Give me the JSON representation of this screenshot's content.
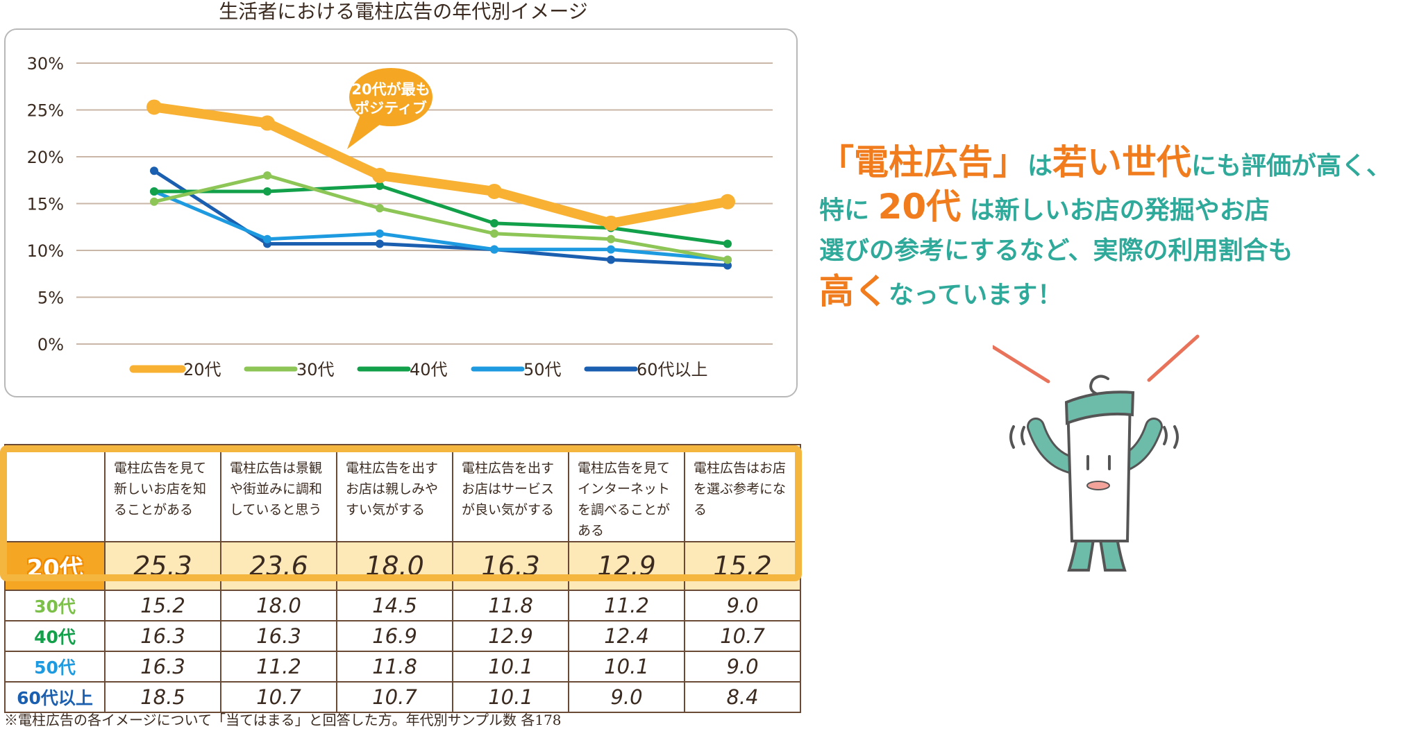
{
  "chart_data": {
    "type": "line",
    "title": "生活者における電柱広告の年代別イメージ",
    "categories": [
      "電柱広告を見て新しいお店を知ることがある",
      "電柱広告は景観や街並みに調和していると思う",
      "電柱広告を出すお店は親しみやすい気がする",
      "電柱広告を出すお店はサービスが良い気がする",
      "電柱広告を見てインターネットを調べることがある",
      "電柱広告はお店を選ぶ参考になる"
    ],
    "y_ticks": [
      "0%",
      "5%",
      "10%",
      "15%",
      "20%",
      "25%",
      "30%"
    ],
    "ylim": [
      0,
      30
    ],
    "grid": true,
    "legend_position": "bottom",
    "series": [
      {
        "name": "20代",
        "color": "#f8b133",
        "values": [
          25.3,
          23.6,
          18.0,
          16.3,
          12.9,
          15.2
        ]
      },
      {
        "name": "30代",
        "color": "#8dc556",
        "values": [
          15.2,
          18.0,
          14.5,
          11.8,
          11.2,
          9.0
        ]
      },
      {
        "name": "40代",
        "color": "#13a04b",
        "values": [
          16.3,
          16.3,
          16.9,
          12.9,
          12.4,
          10.7
        ]
      },
      {
        "name": "50代",
        "color": "#1e9be0",
        "values": [
          16.3,
          11.2,
          11.8,
          10.1,
          10.1,
          9.0
        ]
      },
      {
        "name": "60代以上",
        "color": "#1b5fb0",
        "values": [
          18.5,
          10.7,
          10.7,
          10.1,
          9.0,
          8.4
        ]
      }
    ],
    "annotation": {
      "line1": "20代が最も",
      "line2": "ポジティブ"
    }
  },
  "table": {
    "headers": [
      "電柱広告を見て新しいお店を知ることがある",
      "電柱広告は景観や街並みに調和していると思う",
      "電柱広告を出すお店は親しみやすい気がする",
      "電柱広告を出すお店はサービスが良い気がする",
      "電柱広告を見てインターネットを調べることがある",
      "電柱広告はお店を選ぶ参考になる"
    ],
    "rows": [
      {
        "label": "20代",
        "color": "#f5a623",
        "values": [
          "25.3",
          "23.6",
          "18.0",
          "16.3",
          "12.9",
          "15.2"
        ]
      },
      {
        "label": "30代",
        "color": "#7cc04a",
        "values": [
          "15.2",
          "18.0",
          "14.5",
          "11.8",
          "11.2",
          "9.0"
        ]
      },
      {
        "label": "40代",
        "color": "#13a04b",
        "values": [
          "16.3",
          "16.3",
          "16.9",
          "12.9",
          "12.4",
          "10.7"
        ]
      },
      {
        "label": "50代",
        "color": "#1e9be0",
        "values": [
          "16.3",
          "11.2",
          "11.8",
          "10.1",
          "10.1",
          "9.0"
        ]
      },
      {
        "label": "60代以上",
        "color": "#1b5fb0",
        "values": [
          "18.5",
          "10.7",
          "10.7",
          "10.1",
          "9.0",
          "8.4"
        ]
      }
    ]
  },
  "footnote": "※電柱広告の各イメージについて「当てはまる」と回答した方。年代別サンプル数 各178",
  "message": {
    "l1a": "「電柱広告」",
    "l1b": "は",
    "l1c": "若い世代",
    "l1d": "にも評価が高く、",
    "l2a": "特に",
    "l2b": "20代",
    "l2c": "は新しいお店の発掘やお店",
    "l3": "選びの参考にするなど、実際の利用割合も",
    "l4a": "高く",
    "l4b": "なっています！"
  },
  "colors": {
    "accent_orange": "#f07c1e",
    "accent_teal": "#2fa99a",
    "character_teal": "#6cbca9",
    "ray_red": "#e8735a"
  }
}
